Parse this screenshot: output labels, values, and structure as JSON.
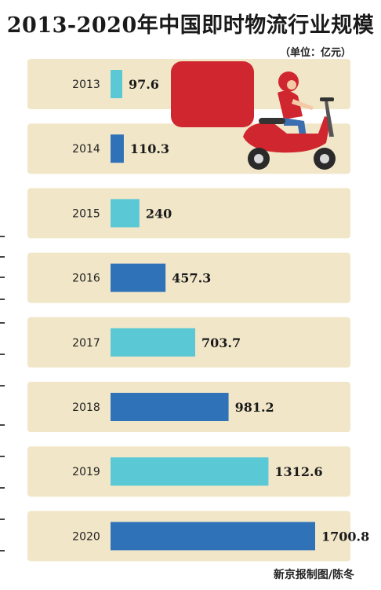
{
  "title": "2013-2020年中国即时物流行业规模",
  "unit": "（单位：亿元）",
  "credit": "新京报制图/陈冬",
  "colors": {
    "panel": "#f1e6c8",
    "bar_light": "#5bc8d6",
    "bar_dark": "#2f72b8",
    "accent_red": "#d0262f"
  },
  "chart_data": {
    "type": "bar",
    "orientation": "horizontal",
    "title": "2013-2020年中国即时物流行业规模",
    "unit": "亿元",
    "categories": [
      "2013",
      "2014",
      "2015",
      "2016",
      "2017",
      "2018",
      "2019",
      "2020"
    ],
    "values": [
      97.6,
      110.3,
      240,
      457.3,
      703.7,
      981.2,
      1312.6,
      1700.8
    ],
    "value_labels": [
      "97.6",
      "110.3",
      "240",
      "457.3",
      "703.7",
      "981.2",
      "1312.6",
      "1700.8"
    ],
    "bar_colors": [
      "#5bc8d6",
      "#2f72b8",
      "#5bc8d6",
      "#2f72b8",
      "#5bc8d6",
      "#2f72b8",
      "#5bc8d6",
      "#2f72b8"
    ],
    "xlim": [
      0,
      1700.8
    ],
    "grid": false,
    "legend": "none"
  }
}
